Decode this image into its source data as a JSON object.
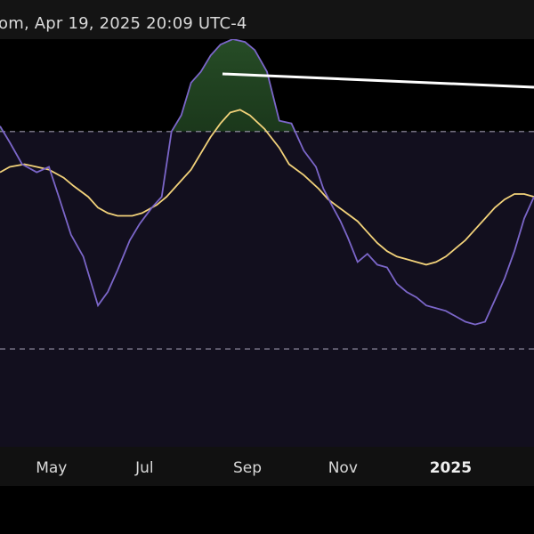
{
  "header": {
    "text": "om, Apr 19, 2025 20:09 UTC-4"
  },
  "colors": {
    "background": "#000000",
    "band_fill": "#120f1e",
    "band_lines": "#9a96ab",
    "rsi_line": "#7b66c9",
    "ma_line": "#f2d27a",
    "overbought_fill": "#1d3a1d",
    "trendline": "#ffffff"
  },
  "chart_data": {
    "type": "line",
    "title": "",
    "xlabel": "",
    "ylabel": "",
    "x_axis": {
      "ticks": [
        {
          "label": "May",
          "x": 4.65,
          "bold": false
        },
        {
          "label": "Jul",
          "x": 6.55,
          "bold": false
        },
        {
          "label": "Sep",
          "x": 8.65,
          "bold": false
        },
        {
          "label": "Nov",
          "x": 10.6,
          "bold": false
        },
        {
          "label": "2025",
          "x": 12.8,
          "bold": true
        }
      ],
      "xlim": [
        3.6,
        14.5
      ]
    },
    "ylim": [
      12,
      87
    ],
    "band": {
      "upper": 70,
      "lower": 30
    },
    "grid": false,
    "legend": "none",
    "series": [
      {
        "type": "rsi",
        "x": [
          3.6,
          3.8,
          4.05,
          4.35,
          4.6,
          4.8,
          5.05,
          5.3,
          5.6,
          5.8,
          6.0,
          6.25,
          6.45,
          6.7,
          6.9,
          7.1,
          7.3,
          7.5,
          7.7,
          7.9,
          8.1,
          8.35,
          8.6,
          8.8,
          9.05,
          9.3,
          9.55,
          9.8,
          10.05,
          10.2,
          10.4,
          10.55,
          10.7,
          10.9,
          11.1,
          11.3,
          11.5,
          11.7,
          11.9,
          12.1,
          12.3,
          12.5,
          12.7,
          12.9,
          13.1,
          13.3,
          13.5,
          13.7,
          13.9,
          14.1,
          14.3,
          14.5
        ],
        "values": [
          71,
          68,
          64,
          62.5,
          63.5,
          58,
          51,
          47,
          38,
          40.5,
          44.5,
          50,
          53,
          56,
          58,
          70,
          73,
          79,
          81,
          84,
          86,
          87,
          86.5,
          85,
          81,
          72,
          71.5,
          66.5,
          63.5,
          59.5,
          56,
          53.5,
          50.5,
          46,
          47.5,
          45.5,
          45,
          42,
          40.5,
          39.5,
          38,
          37.5,
          37,
          36,
          35,
          34.5,
          35,
          39,
          43,
          48,
          54,
          58
        ]
      },
      {
        "type": "ma",
        "x": [
          3.6,
          3.8,
          4.1,
          4.35,
          4.6,
          4.9,
          5.1,
          5.4,
          5.6,
          5.8,
          6.0,
          6.3,
          6.5,
          6.8,
          7.0,
          7.2,
          7.5,
          7.7,
          7.9,
          8.1,
          8.3,
          8.5,
          8.7,
          9.0,
          9.3,
          9.5,
          9.8,
          10.1,
          10.3,
          10.6,
          10.9,
          11.1,
          11.3,
          11.5,
          11.7,
          11.9,
          12.1,
          12.3,
          12.5,
          12.7,
          12.9,
          13.1,
          13.3,
          13.5,
          13.7,
          13.9,
          14.1,
          14.3,
          14.5
        ],
        "values": [
          62.5,
          63.5,
          64,
          63.5,
          63,
          61.5,
          60,
          58,
          56,
          55,
          54.5,
          54.5,
          55,
          56.5,
          58,
          60,
          63,
          66,
          69,
          71.5,
          73.5,
          74,
          73,
          70.5,
          67,
          64,
          62,
          59.5,
          57.5,
          55.5,
          53.5,
          51.5,
          49.5,
          48,
          47,
          46.5,
          46,
          45.5,
          46,
          47,
          48.5,
          50,
          52,
          54,
          56,
          57.5,
          58.5,
          58.5,
          58
        ]
      }
    ],
    "x_pixels_note_removed": true
  }
}
